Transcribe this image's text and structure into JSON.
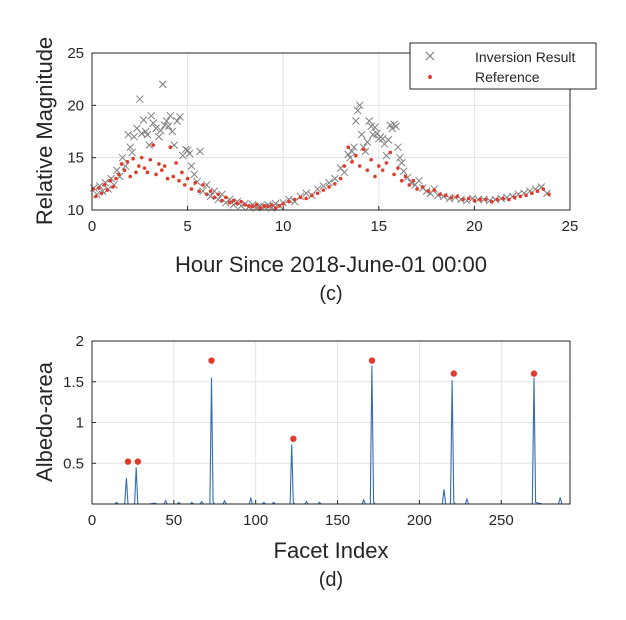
{
  "chart_data": [
    {
      "type": "scatter",
      "panel_label": "(c)",
      "xlabel": "Hour Since 2018-June-01 00:00",
      "ylabel": "Relative Magnitude",
      "xlim": [
        0,
        25
      ],
      "ylim": [
        10,
        25
      ],
      "xticks": [
        0,
        5,
        10,
        15,
        20,
        25
      ],
      "yticks": [
        10,
        15,
        20,
        25
      ],
      "grid": true,
      "legend_position": "top-right",
      "series": [
        {
          "name": "Inversion Result",
          "marker": "x",
          "color": "#808080",
          "x": [
            0.1,
            0.25,
            0.4,
            0.55,
            0.7,
            0.85,
            1.0,
            1.15,
            1.3,
            1.45,
            1.6,
            1.75,
            1.9,
            2.0,
            2.1,
            2.2,
            2.35,
            2.5,
            2.6,
            2.7,
            2.8,
            2.9,
            3.0,
            3.1,
            3.2,
            3.35,
            3.5,
            3.6,
            3.7,
            3.8,
            3.9,
            4.0,
            4.1,
            4.2,
            4.3,
            4.45,
            4.6,
            4.75,
            4.9,
            5.0,
            5.1,
            5.2,
            5.35,
            5.5,
            5.65,
            5.8,
            6.0,
            6.2,
            6.4,
            6.6,
            6.8,
            7.0,
            7.2,
            7.4,
            7.6,
            7.8,
            8.0,
            8.2,
            8.4,
            8.6,
            8.8,
            9.0,
            9.2,
            9.4,
            9.6,
            9.8,
            10.0,
            10.3,
            10.6,
            10.9,
            11.2,
            11.5,
            11.8,
            12.1,
            12.4,
            12.7,
            13.0,
            13.2,
            13.4,
            13.5,
            13.6,
            13.7,
            13.8,
            13.9,
            14.0,
            14.1,
            14.2,
            14.3,
            14.4,
            14.5,
            14.6,
            14.7,
            14.8,
            14.9,
            15.0,
            15.1,
            15.2,
            15.3,
            15.4,
            15.5,
            15.6,
            15.7,
            15.8,
            15.9,
            16.0,
            16.1,
            16.2,
            16.3,
            16.5,
            16.7,
            16.9,
            17.1,
            17.3,
            17.5,
            17.7,
            17.9,
            18.1,
            18.4,
            18.7,
            19.0,
            19.3,
            19.6,
            19.9,
            20.2,
            20.5,
            20.8,
            21.1,
            21.4,
            21.7,
            22.0,
            22.3,
            22.6,
            22.9,
            23.2,
            23.5,
            23.8
          ],
          "y": [
            12.1,
            11.5,
            12.3,
            11.8,
            12.6,
            12.0,
            13.0,
            12.4,
            13.8,
            13.2,
            15.0,
            14.2,
            17.2,
            16.0,
            15.5,
            17.0,
            17.8,
            20.6,
            17.3,
            18.6,
            17.5,
            17.2,
            16.2,
            19.0,
            18.3,
            17.8,
            17.0,
            17.6,
            22.0,
            18.1,
            18.5,
            18.0,
            19.0,
            17.5,
            16.2,
            18.5,
            18.9,
            15.2,
            15.8,
            15.7,
            15.4,
            14.2,
            13.4,
            12.7,
            15.6,
            11.8,
            12.4,
            11.3,
            11.8,
            11.0,
            11.5,
            10.7,
            11.0,
            10.5,
            10.8,
            10.4,
            10.6,
            10.3,
            10.5,
            10.2,
            10.4,
            10.3,
            10.5,
            10.2,
            10.6,
            10.4,
            10.7,
            11.0,
            10.8,
            11.3,
            11.6,
            11.4,
            12.0,
            12.3,
            12.6,
            13.0,
            14.0,
            13.6,
            15.3,
            15.0,
            15.6,
            16.0,
            18.5,
            19.5,
            20.0,
            17.2,
            16.0,
            15.6,
            16.5,
            18.5,
            18.0,
            17.2,
            17.9,
            17.3,
            16.8,
            17.0,
            16.8,
            16.3,
            15.2,
            16.7,
            18.1,
            17.8,
            18.2,
            18.0,
            16.0,
            15.0,
            14.5,
            13.7,
            13.1,
            12.6,
            12.4,
            12.8,
            12.1,
            11.8,
            11.6,
            12.0,
            11.4,
            11.3,
            11.1,
            11.2,
            11.0,
            10.9,
            11.1,
            11.0,
            11.0,
            10.9,
            11.0,
            11.1,
            11.2,
            11.3,
            11.5,
            11.6,
            11.8,
            12.0,
            12.2,
            11.6
          ]
        },
        {
          "name": "Reference",
          "marker": "dot",
          "color": "#e23a2b",
          "x": [
            0.05,
            0.2,
            0.35,
            0.5,
            0.65,
            0.8,
            0.95,
            1.1,
            1.25,
            1.4,
            1.55,
            1.7,
            1.85,
            2.0,
            2.15,
            2.3,
            2.45,
            2.6,
            2.75,
            2.9,
            3.05,
            3.2,
            3.35,
            3.5,
            3.65,
            3.8,
            3.95,
            4.1,
            4.25,
            4.4,
            4.55,
            4.7,
            4.85,
            5.0,
            5.2,
            5.4,
            5.6,
            5.8,
            6.0,
            6.2,
            6.4,
            6.6,
            6.8,
            7.0,
            7.2,
            7.4,
            7.6,
            7.8,
            8.0,
            8.2,
            8.4,
            8.6,
            8.8,
            9.0,
            9.2,
            9.4,
            9.6,
            9.8,
            10.0,
            10.3,
            10.6,
            10.9,
            11.2,
            11.5,
            11.8,
            12.1,
            12.4,
            12.7,
            13.0,
            13.2,
            13.4,
            13.6,
            13.8,
            14.0,
            14.2,
            14.4,
            14.6,
            14.8,
            15.0,
            15.2,
            15.4,
            15.6,
            15.8,
            16.0,
            16.2,
            16.4,
            16.6,
            16.8,
            17.0,
            17.3,
            17.6,
            17.9,
            18.2,
            18.5,
            18.8,
            19.1,
            19.4,
            19.7,
            20.0,
            20.3,
            20.6,
            20.9,
            21.2,
            21.5,
            21.8,
            22.1,
            22.4,
            22.7,
            23.0,
            23.3,
            23.6,
            23.9
          ],
          "y": [
            12.0,
            11.3,
            12.1,
            11.6,
            12.4,
            11.9,
            12.8,
            12.2,
            13.0,
            13.4,
            14.4,
            13.8,
            14.6,
            13.2,
            14.9,
            13.6,
            14.2,
            15.0,
            14.0,
            13.6,
            14.8,
            16.2,
            13.4,
            14.4,
            13.8,
            14.2,
            13.0,
            16.0,
            13.2,
            14.5,
            12.8,
            13.6,
            12.4,
            13.0,
            12.0,
            12.6,
            11.8,
            12.4,
            11.5,
            11.8,
            11.2,
            11.5,
            10.9,
            11.2,
            10.7,
            10.9,
            10.6,
            10.8,
            10.5,
            10.4,
            10.3,
            10.5,
            10.2,
            10.4,
            10.3,
            10.5,
            10.2,
            10.4,
            10.6,
            10.8,
            11.0,
            11.2,
            11.1,
            11.4,
            11.6,
            11.9,
            12.2,
            12.5,
            13.0,
            14.2,
            16.0,
            14.6,
            15.2,
            14.2,
            15.8,
            13.8,
            14.8,
            13.2,
            14.2,
            13.8,
            14.5,
            15.5,
            13.4,
            14.0,
            12.8,
            13.2,
            12.4,
            12.8,
            12.0,
            12.2,
            11.8,
            11.9,
            11.5,
            11.4,
            11.2,
            11.3,
            11.0,
            11.1,
            10.9,
            11.0,
            11.0,
            10.8,
            11.0,
            11.1,
            11.0,
            11.2,
            11.3,
            11.4,
            11.6,
            11.8,
            12.0,
            11.5
          ]
        }
      ]
    },
    {
      "type": "line",
      "panel_label": "(d)",
      "xlabel": "Facet Index",
      "ylabel": "Albedo-area",
      "xlim": [
        0,
        292
      ],
      "ylim": [
        0,
        2
      ],
      "xticks": [
        0,
        50,
        100,
        150,
        200,
        250
      ],
      "yticks": [
        0.5,
        1,
        1.5,
        2
      ],
      "grid": true,
      "series": [
        {
          "color": "#2f6eb5",
          "x": [
            0,
            14,
            15,
            16,
            20,
            21,
            22,
            23,
            26,
            27,
            28,
            29,
            35,
            38,
            40,
            44,
            45,
            46,
            52,
            53,
            54,
            60,
            61,
            62,
            66,
            67,
            68,
            72,
            73,
            74,
            75,
            80,
            81,
            82,
            90,
            96,
            97,
            98,
            104,
            105,
            106,
            110,
            111,
            112,
            120,
            121,
            122,
            123,
            124,
            130,
            131,
            132,
            138,
            139,
            140,
            150,
            160,
            165,
            166,
            167,
            170,
            171,
            172,
            173,
            180,
            190,
            200,
            214,
            215,
            216,
            219,
            220,
            221,
            222,
            223,
            228,
            229,
            230,
            240,
            250,
            260,
            268,
            269,
            270,
            271,
            275,
            285,
            286,
            287,
            292
          ],
          "y": [
            0,
            0,
            0.02,
            0,
            0,
            0.32,
            0,
            0,
            0,
            0.45,
            0,
            0,
            0,
            0.01,
            0,
            0,
            0.04,
            0,
            0,
            0.02,
            0,
            0,
            0.02,
            0,
            0,
            0.03,
            0,
            0,
            1.55,
            0.02,
            0,
            0,
            0.04,
            0,
            0,
            0,
            0.07,
            0,
            0,
            0.02,
            0,
            0,
            0.02,
            0,
            0,
            0,
            0.73,
            0.02,
            0,
            0,
            0.03,
            0,
            0,
            0.02,
            0,
            0,
            0,
            0,
            0.05,
            0,
            0,
            1.7,
            0.02,
            0,
            0,
            0,
            0,
            0,
            0.18,
            0,
            0,
            1.52,
            0.02,
            0,
            0,
            0,
            0.06,
            0,
            0,
            0,
            0,
            0,
            0,
            1.55,
            0.02,
            0,
            0,
            0.08,
            0,
            0
          ]
        },
        {
          "marker": "dot",
          "color": "#e23a2b",
          "x": [
            22,
            28,
            73,
            123,
            171,
            221,
            270
          ],
          "y": [
            0.52,
            0.52,
            1.76,
            0.8,
            1.76,
            1.6,
            1.6
          ]
        }
      ]
    }
  ]
}
